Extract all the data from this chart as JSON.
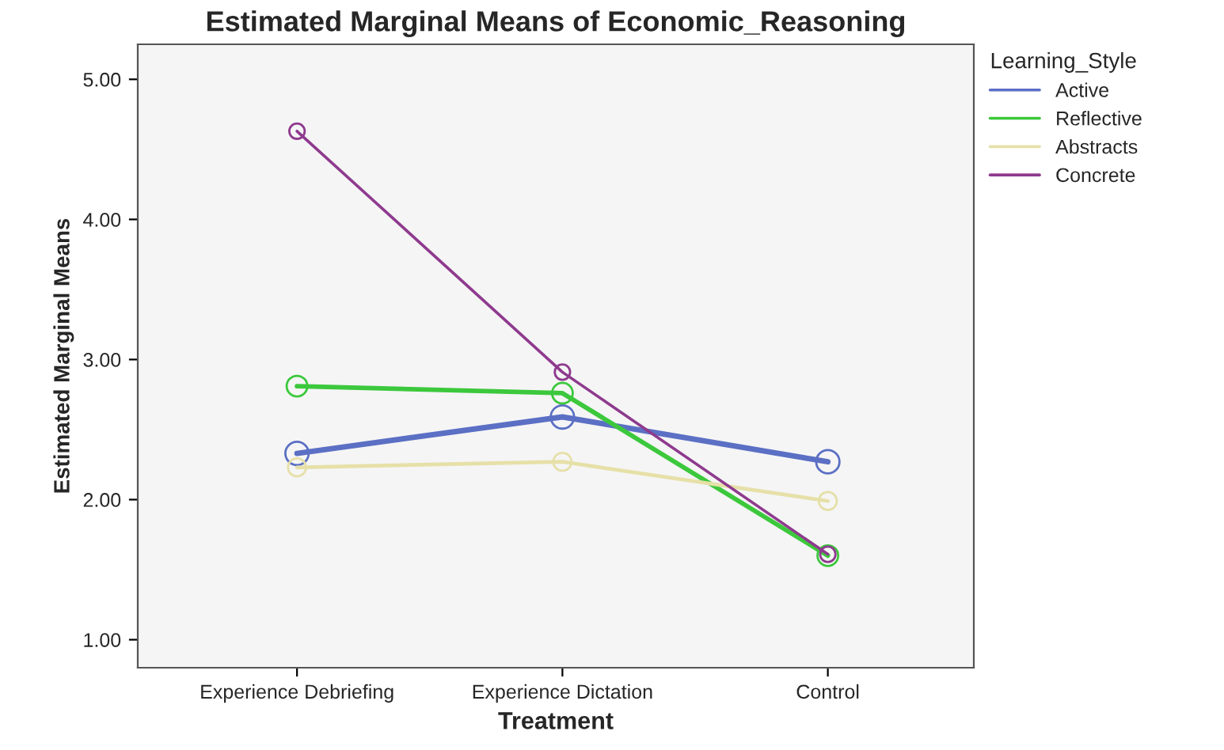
{
  "chart_data": {
    "type": "line",
    "title": "Estimated Marginal Means of Economic_Reasoning",
    "xlabel": "Treatment",
    "ylabel": "Estimated Marginal Means",
    "legend_title": "Learning_Style",
    "categories": [
      "Experience Debriefing",
      "Experience Dictation",
      "Control"
    ],
    "series": [
      {
        "name": "Active",
        "color": "#5b6fc4",
        "values": [
          2.33,
          2.59,
          2.27
        ]
      },
      {
        "name": "Reflective",
        "color": "#3cc83c",
        "values": [
          2.81,
          2.76,
          1.6
        ]
      },
      {
        "name": "Abstracts",
        "color": "#e6e0a8",
        "values": [
          2.23,
          2.27,
          1.99
        ]
      },
      {
        "name": "Concrete",
        "color": "#8e3a8e",
        "values": [
          4.63,
          2.91,
          1.61
        ]
      }
    ],
    "ylim": [
      0.8,
      5.25
    ],
    "yticks": [
      {
        "value": 1,
        "label": "1.00"
      },
      {
        "value": 2,
        "label": "2.00"
      },
      {
        "value": 3,
        "label": "3.00"
      },
      {
        "value": 4,
        "label": "4.00"
      },
      {
        "value": 5,
        "label": "5.00"
      }
    ],
    "marker": "circle",
    "line_style": "solid",
    "grid": false,
    "legend": "top right"
  }
}
